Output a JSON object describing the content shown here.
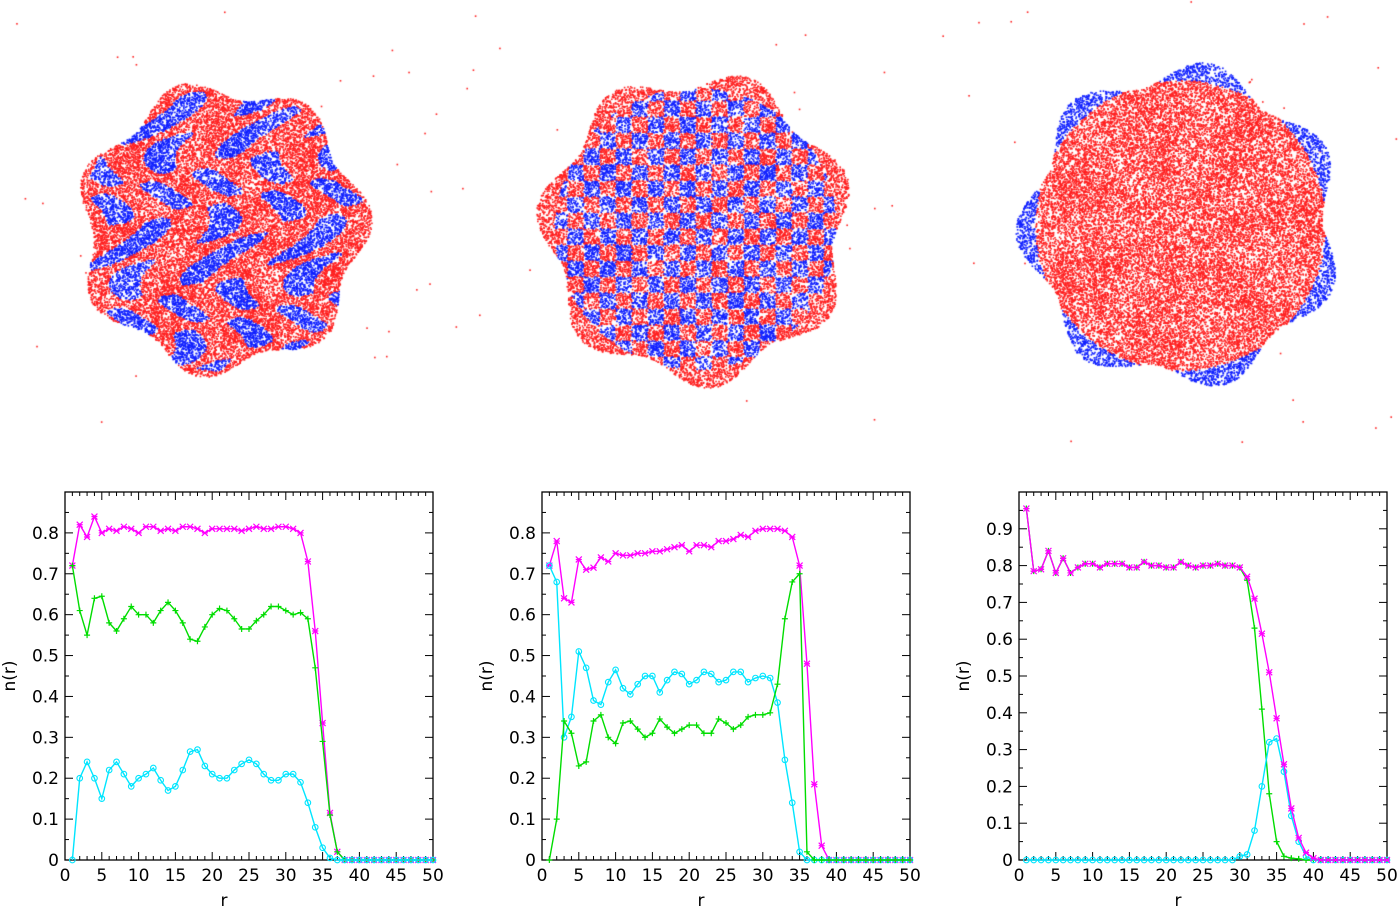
{
  "colors": {
    "magenta": "#ff00ff",
    "green": "#00dd00",
    "cyan": "#00e5ff",
    "red_particles": "#ff2020",
    "blue_particles": "#1020ff"
  },
  "snapshots": [
    {
      "style": "mixed-domains"
    },
    {
      "style": "checkerboard"
    },
    {
      "style": "red-core-blue-rim"
    }
  ],
  "chart_data": [
    {
      "type": "line",
      "xlabel": "r",
      "ylabel": "n(r)",
      "xlim": [
        0,
        50
      ],
      "ylim": [
        0,
        0.9
      ],
      "xticks": [
        "0",
        "5",
        "10",
        "15",
        "20",
        "25",
        "30",
        "35",
        "40",
        "45",
        "50"
      ],
      "yticks": [
        "0",
        "0.1",
        "0.2",
        "0.3",
        "0.4",
        "0.5",
        "0.6",
        "0.7",
        "0.8"
      ],
      "x": [
        1,
        2,
        3,
        4,
        5,
        6,
        7,
        8,
        9,
        10,
        11,
        12,
        13,
        14,
        15,
        16,
        17,
        18,
        19,
        20,
        21,
        22,
        23,
        24,
        25,
        26,
        27,
        28,
        29,
        30,
        31,
        32,
        33,
        34,
        35,
        36,
        37,
        38,
        39,
        40,
        41,
        42,
        43,
        44,
        45,
        46,
        47,
        48,
        49,
        50
      ],
      "series": [
        {
          "color": "magenta",
          "marker": "x",
          "values": [
            0.72,
            0.82,
            0.79,
            0.84,
            0.8,
            0.81,
            0.805,
            0.815,
            0.81,
            0.8,
            0.815,
            0.815,
            0.805,
            0.81,
            0.805,
            0.815,
            0.815,
            0.81,
            0.8,
            0.81,
            0.81,
            0.81,
            0.81,
            0.805,
            0.81,
            0.815,
            0.81,
            0.81,
            0.815,
            0.815,
            0.81,
            0.8,
            0.73,
            0.56,
            0.335,
            0.115,
            0.02,
            0,
            0,
            0,
            0,
            0,
            0,
            0,
            0,
            0,
            0,
            0,
            0,
            0
          ]
        },
        {
          "color": "green",
          "marker": "+",
          "values": [
            0.72,
            0.61,
            0.55,
            0.64,
            0.645,
            0.58,
            0.56,
            0.59,
            0.62,
            0.6,
            0.6,
            0.58,
            0.61,
            0.63,
            0.61,
            0.58,
            0.54,
            0.535,
            0.57,
            0.6,
            0.615,
            0.61,
            0.59,
            0.565,
            0.565,
            0.585,
            0.6,
            0.62,
            0.62,
            0.61,
            0.6,
            0.605,
            0.59,
            0.47,
            0.29,
            0.11,
            0.02,
            0,
            0,
            0,
            0,
            0,
            0,
            0,
            0,
            0,
            0,
            0,
            0,
            0
          ]
        },
        {
          "color": "cyan",
          "marker": "o",
          "values": [
            0,
            0.2,
            0.24,
            0.2,
            0.15,
            0.22,
            0.24,
            0.21,
            0.18,
            0.2,
            0.21,
            0.225,
            0.195,
            0.17,
            0.18,
            0.22,
            0.265,
            0.27,
            0.23,
            0.21,
            0.2,
            0.2,
            0.22,
            0.235,
            0.245,
            0.235,
            0.21,
            0.195,
            0.195,
            0.21,
            0.21,
            0.19,
            0.14,
            0.08,
            0.03,
            0.005,
            0,
            0,
            0,
            0,
            0,
            0,
            0,
            0,
            0,
            0,
            0,
            0,
            0,
            0
          ]
        }
      ]
    },
    {
      "type": "line",
      "xlabel": "r",
      "ylabel": "n(r)",
      "xlim": [
        0,
        50
      ],
      "ylim": [
        0,
        0.9
      ],
      "xticks": [
        "0",
        "5",
        "10",
        "15",
        "20",
        "25",
        "30",
        "35",
        "40",
        "45",
        "50"
      ],
      "yticks": [
        "0",
        "0.1",
        "0.2",
        "0.3",
        "0.4",
        "0.5",
        "0.6",
        "0.7",
        "0.8"
      ],
      "x": [
        1,
        2,
        3,
        4,
        5,
        6,
        7,
        8,
        9,
        10,
        11,
        12,
        13,
        14,
        15,
        16,
        17,
        18,
        19,
        20,
        21,
        22,
        23,
        24,
        25,
        26,
        27,
        28,
        29,
        30,
        31,
        32,
        33,
        34,
        35,
        36,
        37,
        38,
        39,
        40,
        41,
        42,
        43,
        44,
        45,
        46,
        47,
        48,
        49,
        50
      ],
      "series": [
        {
          "color": "magenta",
          "marker": "x",
          "values": [
            0.72,
            0.78,
            0.64,
            0.63,
            0.735,
            0.71,
            0.715,
            0.74,
            0.73,
            0.75,
            0.745,
            0.745,
            0.75,
            0.75,
            0.755,
            0.755,
            0.76,
            0.765,
            0.77,
            0.755,
            0.77,
            0.77,
            0.765,
            0.78,
            0.78,
            0.785,
            0.795,
            0.79,
            0.805,
            0.81,
            0.81,
            0.81,
            0.805,
            0.79,
            0.72,
            0.48,
            0.185,
            0.035,
            0,
            0,
            0,
            0,
            0,
            0,
            0,
            0,
            0,
            0,
            0,
            0
          ]
        },
        {
          "color": "cyan",
          "marker": "o",
          "values": [
            0.72,
            0.68,
            0.3,
            0.35,
            0.51,
            0.47,
            0.39,
            0.38,
            0.435,
            0.465,
            0.42,
            0.405,
            0.43,
            0.45,
            0.45,
            0.41,
            0.44,
            0.46,
            0.455,
            0.43,
            0.44,
            0.46,
            0.455,
            0.435,
            0.44,
            0.46,
            0.46,
            0.435,
            0.445,
            0.45,
            0.445,
            0.385,
            0.245,
            0.14,
            0.02,
            0,
            0,
            0,
            0,
            0,
            0,
            0,
            0,
            0,
            0,
            0,
            0,
            0,
            0,
            0
          ]
        },
        {
          "color": "green",
          "marker": "+",
          "values": [
            0,
            0.1,
            0.34,
            0.31,
            0.23,
            0.24,
            0.34,
            0.355,
            0.3,
            0.285,
            0.335,
            0.34,
            0.32,
            0.3,
            0.31,
            0.345,
            0.325,
            0.31,
            0.32,
            0.33,
            0.33,
            0.31,
            0.31,
            0.345,
            0.335,
            0.32,
            0.33,
            0.35,
            0.355,
            0.355,
            0.36,
            0.43,
            0.59,
            0.68,
            0.7,
            0.02,
            0,
            0,
            0,
            0,
            0,
            0,
            0,
            0,
            0,
            0,
            0,
            0,
            0,
            0
          ]
        }
      ]
    },
    {
      "type": "line",
      "xlabel": "r",
      "ylabel": "n(r)",
      "xlim": [
        0,
        50
      ],
      "ylim": [
        0,
        1.0
      ],
      "xticks": [
        "0",
        "5",
        "10",
        "15",
        "20",
        "25",
        "30",
        "35",
        "40",
        "45",
        "50"
      ],
      "yticks": [
        "0",
        "0.1",
        "0.2",
        "0.3",
        "0.4",
        "0.5",
        "0.6",
        "0.7",
        "0.8",
        "0.9"
      ],
      "x": [
        1,
        2,
        3,
        4,
        5,
        6,
        7,
        8,
        9,
        10,
        11,
        12,
        13,
        14,
        15,
        16,
        17,
        18,
        19,
        20,
        21,
        22,
        23,
        24,
        25,
        26,
        27,
        28,
        29,
        30,
        31,
        32,
        33,
        34,
        35,
        36,
        37,
        38,
        39,
        40,
        41,
        42,
        43,
        44,
        45,
        46,
        47,
        48,
        49,
        50
      ],
      "series": [
        {
          "color": "green",
          "marker": "+",
          "values": [
            0.955,
            0.785,
            0.79,
            0.84,
            0.78,
            0.82,
            0.78,
            0.795,
            0.805,
            0.805,
            0.795,
            0.805,
            0.805,
            0.805,
            0.795,
            0.795,
            0.81,
            0.8,
            0.8,
            0.795,
            0.795,
            0.81,
            0.8,
            0.795,
            0.8,
            0.8,
            0.805,
            0.8,
            0.8,
            0.795,
            0.76,
            0.63,
            0.41,
            0.18,
            0.05,
            0.01,
            0.005,
            0.003,
            0,
            0,
            0,
            0,
            0,
            0,
            0,
            0,
            0,
            0,
            0,
            0
          ]
        },
        {
          "color": "cyan",
          "marker": "o",
          "values": [
            0,
            0,
            0,
            0,
            0,
            0,
            0,
            0,
            0,
            0,
            0,
            0,
            0,
            0,
            0,
            0,
            0,
            0,
            0,
            0,
            0,
            0,
            0,
            0,
            0,
            0,
            0,
            0,
            0,
            0.01,
            0.015,
            0.08,
            0.2,
            0.32,
            0.33,
            0.24,
            0.12,
            0.05,
            0.01,
            0,
            0,
            0,
            0,
            0,
            0,
            0,
            0,
            0,
            0,
            0
          ]
        },
        {
          "color": "magenta",
          "marker": "x",
          "values": [
            0.955,
            0.785,
            0.79,
            0.84,
            0.78,
            0.82,
            0.78,
            0.795,
            0.805,
            0.805,
            0.795,
            0.805,
            0.805,
            0.805,
            0.795,
            0.795,
            0.81,
            0.8,
            0.8,
            0.795,
            0.795,
            0.81,
            0.8,
            0.795,
            0.8,
            0.8,
            0.805,
            0.8,
            0.8,
            0.795,
            0.77,
            0.71,
            0.615,
            0.51,
            0.385,
            0.26,
            0.14,
            0.06,
            0.02,
            0.005,
            0,
            0,
            0,
            0,
            0,
            0,
            0,
            0,
            0,
            0
          ]
        }
      ]
    }
  ]
}
